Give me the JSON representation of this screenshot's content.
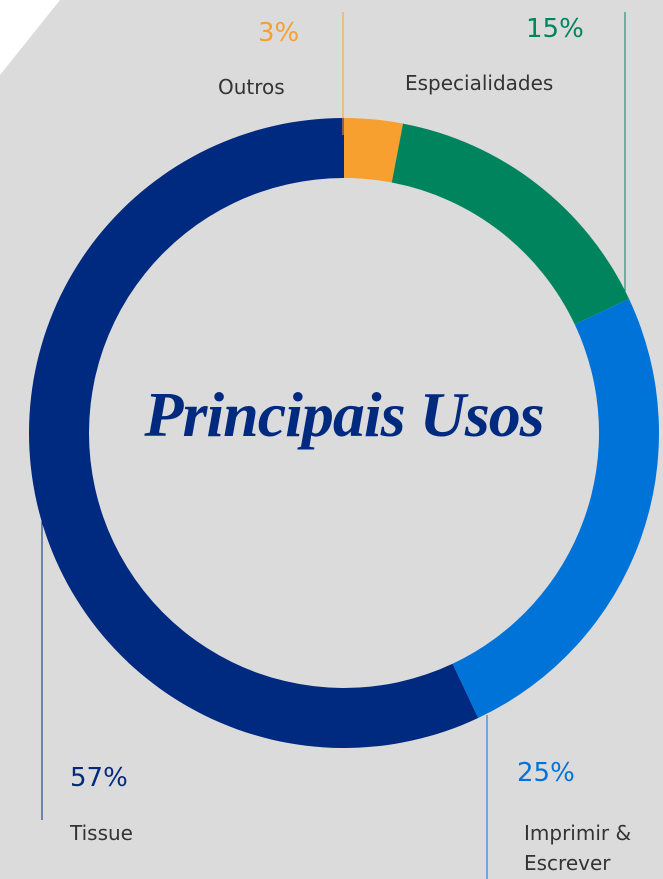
{
  "chart_data": {
    "type": "donut",
    "title": "Principais Usos",
    "categories": [
      "Outros",
      "Especialidades",
      "Imprimir & Escrever",
      "Tissue"
    ],
    "values": [
      3,
      15,
      25,
      57
    ],
    "value_labels": [
      "3%",
      "15%",
      "25%",
      "57%"
    ],
    "colors": [
      "#f7a030",
      "#00845e",
      "#0073d9",
      "#002a7f"
    ]
  }
}
